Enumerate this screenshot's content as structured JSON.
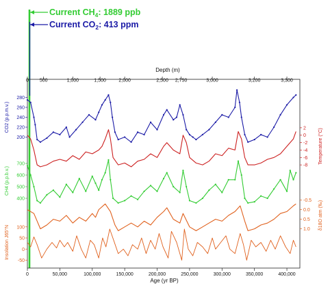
{
  "annotations": {
    "ch4": {
      "prefix": "Current CH",
      "sub": "4",
      "suffix": ": 1889 ppb",
      "color": "#33cc33"
    },
    "co2": {
      "prefix": "Current CO",
      "sub": "2",
      "suffix": ": 413 ppm",
      "color": "#1a1aa6"
    }
  },
  "chart_data": {
    "type": "line",
    "xlabel": "Age (yr BP)",
    "x_ticks": [
      "0",
      "50,000",
      "100,000",
      "150,000",
      "200,000",
      "250,000",
      "300,000",
      "350,000",
      "400,000"
    ],
    "x_tick_values": [
      0,
      50000,
      100000,
      150000,
      200000,
      250000,
      300000,
      350000,
      400000
    ],
    "xlim": [
      0,
      420000
    ],
    "top_axis": {
      "label": "Depth (m)",
      "ticks": [
        "0",
        "500",
        "1,000",
        "1,500",
        "2,000",
        "2,500",
        "2,750",
        "3,000",
        "3,200",
        "3,300"
      ],
      "tick_ages": [
        0,
        25000,
        70000,
        112000,
        150000,
        208000,
        237000,
        285000,
        350000,
        400000
      ]
    },
    "panels": [
      {
        "name": "co2",
        "label": "CO2 (p.p.m.v.)",
        "side": "left",
        "color": "#1a1aa6",
        "ticks": [
          "280",
          "260",
          "240",
          "220",
          "200"
        ],
        "tick_values": [
          280,
          260,
          240,
          220,
          200
        ],
        "ylim": [
          180,
          300
        ],
        "x": [
          0,
          5000,
          10000,
          12000,
          15000,
          20000,
          30000,
          40000,
          50000,
          60000,
          65000,
          75000,
          85000,
          95000,
          105000,
          110000,
          115000,
          120000,
          125000,
          128000,
          131000,
          135000,
          140000,
          150000,
          160000,
          170000,
          180000,
          190000,
          200000,
          210000,
          215000,
          225000,
          230000,
          235000,
          240000,
          245000,
          250000,
          255000,
          260000,
          270000,
          280000,
          290000,
          300000,
          310000,
          320000,
          323000,
          327000,
          330000,
          335000,
          340000,
          350000,
          360000,
          370000,
          380000,
          390000,
          400000,
          410000,
          414000
        ],
        "y": [
          275,
          270,
          240,
          225,
          195,
          190,
          198,
          210,
          205,
          220,
          200,
          215,
          230,
          245,
          235,
          250,
          265,
          275,
          285,
          270,
          240,
          210,
          195,
          200,
          190,
          210,
          205,
          230,
          215,
          245,
          255,
          235,
          240,
          265,
          245,
          215,
          205,
          200,
          195,
          205,
          215,
          230,
          245,
          240,
          260,
          295,
          270,
          240,
          205,
          190,
          195,
          205,
          200,
          220,
          245,
          265,
          280,
          285
        ]
      },
      {
        "name": "temperature",
        "label": "Temperature (°C)",
        "side": "right",
        "color": "#cc2020",
        "ticks": [
          "2",
          "0",
          "-2",
          "-4",
          "-6",
          "-8"
        ],
        "tick_values": [
          2,
          0,
          -2,
          -4,
          -6,
          -8
        ],
        "ylim": [
          -10,
          4
        ],
        "x": [
          0,
          5000,
          10000,
          15000,
          20000,
          30000,
          40000,
          50000,
          60000,
          70000,
          80000,
          90000,
          100000,
          110000,
          115000,
          120000,
          125000,
          128000,
          132000,
          140000,
          150000,
          160000,
          170000,
          180000,
          190000,
          200000,
          210000,
          215000,
          225000,
          235000,
          240000,
          245000,
          250000,
          260000,
          270000,
          280000,
          290000,
          300000,
          310000,
          320000,
          325000,
          330000,
          335000,
          340000,
          350000,
          360000,
          370000,
          380000,
          390000,
          400000,
          410000,
          414000
        ],
        "y": [
          0,
          -1,
          -4,
          -8,
          -8.5,
          -8,
          -7,
          -6.5,
          -7,
          -5.5,
          -6.5,
          -4.5,
          -5,
          -4,
          -3,
          -1,
          1.5,
          -1,
          -6,
          -8,
          -7.5,
          -8.5,
          -7,
          -6.5,
          -5,
          -6,
          -3,
          -2,
          -4,
          -5,
          0,
          -2,
          -6,
          -7.5,
          -8,
          -7,
          -5,
          -5.5,
          -3.5,
          -4,
          1,
          -1,
          -6,
          -8,
          -8,
          -7.5,
          -6.5,
          -6,
          -5,
          -3,
          -1,
          1
        ]
      },
      {
        "name": "ch4",
        "label": "CH4 (p.p.b.v.)",
        "side": "left",
        "color": "#33cc33",
        "ticks": [
          "700",
          "600",
          "500",
          "400"
        ],
        "tick_values": [
          700,
          600,
          500,
          400
        ],
        "ylim": [
          300,
          800
        ],
        "x": [
          0,
          5000,
          10000,
          15000,
          20000,
          30000,
          40000,
          50000,
          60000,
          70000,
          80000,
          90000,
          100000,
          105000,
          110000,
          115000,
          120000,
          125000,
          128000,
          132000,
          140000,
          150000,
          160000,
          170000,
          180000,
          190000,
          200000,
          210000,
          215000,
          225000,
          235000,
          240000,
          245000,
          250000,
          260000,
          270000,
          280000,
          290000,
          300000,
          310000,
          320000,
          325000,
          330000,
          335000,
          340000,
          350000,
          360000,
          370000,
          380000,
          390000,
          400000,
          405000,
          410000,
          414000
        ],
        "y": [
          680,
          600,
          500,
          380,
          360,
          430,
          470,
          410,
          520,
          450,
          570,
          460,
          590,
          530,
          470,
          560,
          620,
          730,
          560,
          400,
          360,
          380,
          420,
          390,
          460,
          510,
          460,
          570,
          620,
          500,
          450,
          640,
          500,
          380,
          360,
          400,
          470,
          520,
          450,
          560,
          560,
          720,
          600,
          400,
          360,
          370,
          420,
          400,
          480,
          560,
          460,
          640,
          560,
          620
        ]
      },
      {
        "name": "d18o",
        "label": "δ18O atm (‰)",
        "side": "right",
        "color": "#e0601c",
        "ticks": [
          "-0.5",
          "0.0",
          "0.5",
          "1.0"
        ],
        "tick_values": [
          -0.5,
          0.0,
          0.5,
          1.0
        ],
        "ylim": [
          1.3,
          -0.7
        ],
        "x": [
          0,
          10000,
          20000,
          30000,
          40000,
          50000,
          60000,
          70000,
          80000,
          90000,
          100000,
          105000,
          110000,
          120000,
          128000,
          135000,
          140000,
          150000,
          160000,
          170000,
          180000,
          190000,
          200000,
          210000,
          215000,
          225000,
          235000,
          240000,
          250000,
          260000,
          270000,
          280000,
          290000,
          300000,
          310000,
          320000,
          328000,
          335000,
          340000,
          350000,
          360000,
          370000,
          380000,
          390000,
          400000,
          410000,
          414000
        ],
        "y": [
          0.0,
          0.2,
          1.0,
          0.8,
          0.5,
          0.6,
          0.3,
          0.7,
          0.4,
          0.6,
          0.2,
          0.4,
          0.0,
          -0.3,
          0.1,
          0.8,
          1.1,
          0.9,
          0.7,
          0.9,
          0.6,
          0.8,
          0.4,
          0.1,
          -0.1,
          0.5,
          0.7,
          0.2,
          0.9,
          1.1,
          0.9,
          0.7,
          0.5,
          0.6,
          0.3,
          0.1,
          -0.2,
          0.6,
          1.1,
          1.0,
          0.8,
          0.7,
          0.5,
          0.2,
          0.1,
          -0.2,
          -0.3
        ]
      },
      {
        "name": "insolation",
        "label": "Insolation J65°N",
        "side": "left",
        "color": "#e0601c",
        "ticks": [
          "100",
          "50",
          "0",
          "-50"
        ],
        "tick_values": [
          100,
          50,
          0,
          -50
        ],
        "ylim": [
          -70,
          130
        ],
        "x": [
          0,
          5000,
          10000,
          15000,
          22000,
          30000,
          38000,
          45000,
          50000,
          57000,
          62000,
          70000,
          76000,
          83000,
          90000,
          97000,
          103000,
          110000,
          116000,
          121000,
          127000,
          133000,
          140000,
          148000,
          155000,
          162000,
          170000,
          176000,
          183000,
          190000,
          197000,
          203000,
          209000,
          217000,
          222000,
          230000,
          238000,
          242000,
          248000,
          255000,
          262000,
          270000,
          278000,
          285000,
          290000,
          298000,
          306000,
          312000,
          320000,
          328000,
          333000,
          338000,
          345000,
          352000,
          360000,
          368000,
          375000,
          382000,
          390000,
          398000,
          405000,
          410000,
          414000
        ],
        "y": [
          30,
          10,
          55,
          20,
          -40,
          0,
          30,
          5,
          40,
          10,
          30,
          -10,
          60,
          0,
          -40,
          40,
          20,
          -40,
          50,
          10,
          90,
          40,
          -20,
          0,
          -30,
          20,
          0,
          50,
          -20,
          40,
          0,
          70,
          10,
          -40,
          80,
          30,
          -50,
          90,
          0,
          -30,
          30,
          10,
          -20,
          50,
          0,
          30,
          60,
          0,
          -20,
          70,
          20,
          -50,
          40,
          10,
          30,
          -10,
          40,
          0,
          60,
          10,
          -20,
          40,
          10
        ]
      }
    ]
  }
}
